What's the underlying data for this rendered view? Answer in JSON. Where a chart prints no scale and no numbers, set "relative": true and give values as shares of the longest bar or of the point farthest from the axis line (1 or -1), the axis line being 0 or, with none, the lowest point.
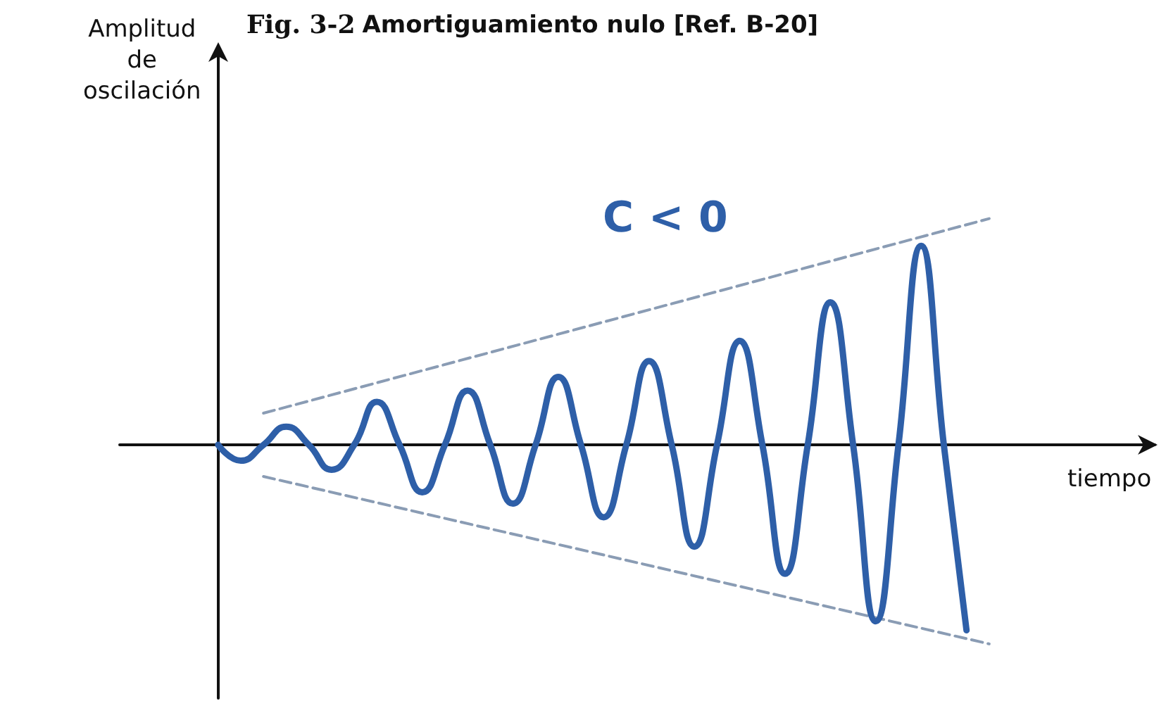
{
  "chart_data": {
    "type": "line",
    "title": "Fig. 3-2 Amortiguamiento nulo [Ref. B-20]",
    "xlabel": "tiempo",
    "ylabel": "Amplitud de oscilación",
    "relative": true,
    "annotations": [
      "C < 0"
    ],
    "categories": [
      null,
      null,
      null,
      null,
      null,
      null,
      null,
      null,
      null,
      null,
      null,
      null,
      null,
      null,
      null,
      null,
      null,
      null,
      null,
      null,
      null,
      null,
      null,
      null,
      null,
      null,
      null,
      null,
      null,
      null,
      null,
      null,
      null,
      null,
      null
    ],
    "series": [
      {
        "color": "#2e5fa8",
        "line_style": "solid",
        "values": [
          0,
          -0.07,
          0,
          0.08,
          0,
          -0.11,
          0,
          0.19,
          0,
          -0.21,
          0,
          0.24,
          0,
          -0.26,
          0,
          0.3,
          0,
          -0.32,
          0,
          0.37,
          0,
          -0.45,
          0,
          0.46,
          0,
          -0.57,
          0,
          0.63,
          0,
          -0.78,
          0,
          0.88,
          0,
          -0.82,
          null
        ]
      },
      {
        "color": "#8a9cb4",
        "line_style": "dashed",
        "values": [
          null,
          null,
          0.14,
          null,
          null,
          null,
          null,
          null,
          null,
          null,
          null,
          null,
          null,
          null,
          null,
          null,
          null,
          null,
          null,
          null,
          null,
          null,
          null,
          null,
          null,
          null,
          null,
          null,
          null,
          null,
          null,
          null,
          null,
          null,
          1
        ]
      },
      {
        "color": "#8a9cb4",
        "line_style": "dashed",
        "values": [
          null,
          null,
          -0.14,
          null,
          null,
          null,
          null,
          null,
          null,
          null,
          null,
          null,
          null,
          null,
          null,
          null,
          null,
          null,
          null,
          null,
          null,
          null,
          null,
          null,
          null,
          null,
          null,
          null,
          null,
          null,
          null,
          null,
          null,
          null,
          -0.88
        ]
      }
    ],
    "grid": false,
    "marker": "none"
  }
}
